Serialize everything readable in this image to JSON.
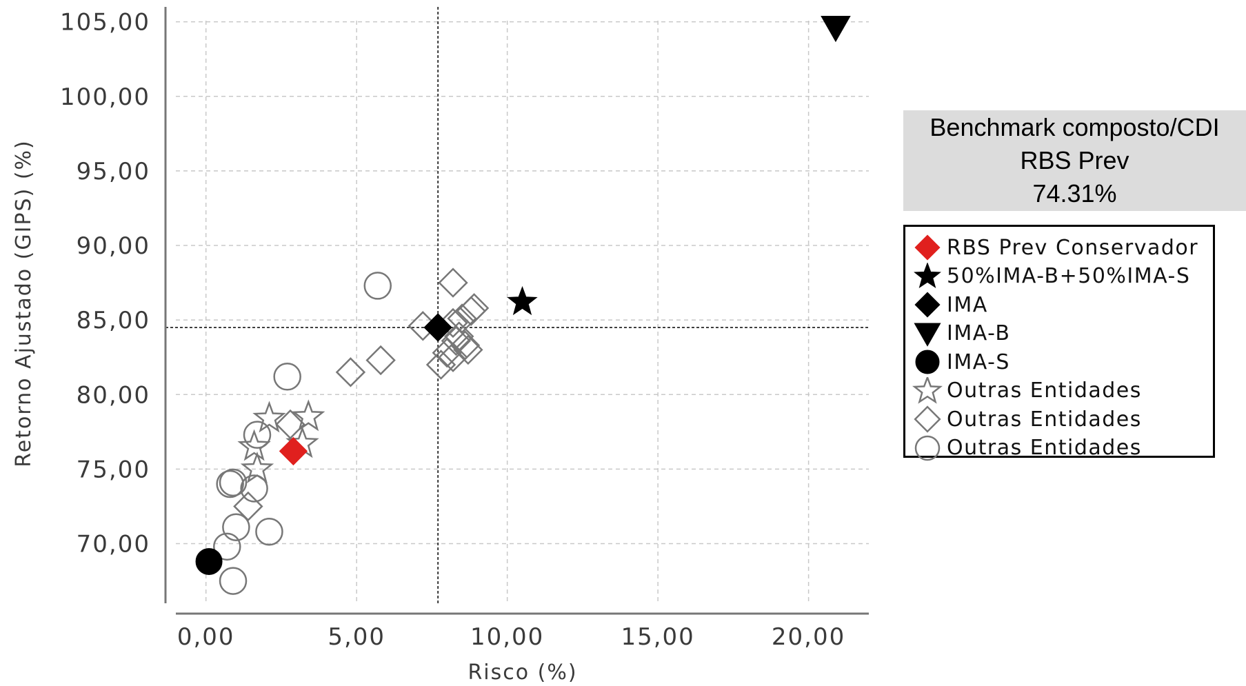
{
  "chart_data": {
    "type": "scatter",
    "xlabel": "Risco (%)",
    "ylabel": "Retorno Ajustado (GIPS) (%)",
    "xlim": [
      -1.0,
      22.0
    ],
    "ylim": [
      66.0,
      106.0
    ],
    "x_ticks": [
      0,
      5,
      10,
      15,
      20
    ],
    "x_tick_labels": [
      "0,00",
      "5,00",
      "10,00",
      "15,00",
      "20,00"
    ],
    "y_ticks": [
      70,
      75,
      80,
      85,
      90,
      95,
      100,
      105
    ],
    "y_tick_labels": [
      "70,00",
      "75,00",
      "80,00",
      "85,00",
      "90,00",
      "95,00",
      "100,00",
      "105,00"
    ],
    "grid": true,
    "reference_lines": {
      "x": 7.7,
      "y": 84.5
    },
    "legend_position": "right",
    "series": [
      {
        "name": "RBS Prev Conservador",
        "marker": "diamond",
        "fill": "#e0201e",
        "stroke": "#e0201e",
        "points": [
          [
            2.9,
            76.2
          ]
        ]
      },
      {
        "name": "50%IMA-B+50%IMA-S",
        "marker": "star",
        "fill": "#000000",
        "stroke": "#000000",
        "points": [
          [
            10.5,
            86.2
          ]
        ]
      },
      {
        "name": "IMA",
        "marker": "diamond",
        "fill": "#000000",
        "stroke": "#000000",
        "points": [
          [
            7.7,
            84.5
          ]
        ]
      },
      {
        "name": "IMA-B",
        "marker": "triangle-down",
        "fill": "#000000",
        "stroke": "#000000",
        "points": [
          [
            20.9,
            104.6
          ]
        ]
      },
      {
        "name": "IMA-S",
        "marker": "circle",
        "fill": "#000000",
        "stroke": "#000000",
        "points": [
          [
            0.1,
            68.8
          ]
        ]
      },
      {
        "name": "Outras Entidades",
        "marker": "star",
        "fill": "none",
        "stroke": "#777777",
        "points": [
          [
            2.1,
            78.4
          ],
          [
            3.4,
            78.5
          ],
          [
            3.2,
            76.7
          ],
          [
            1.6,
            76.5
          ],
          [
            1.7,
            75.0
          ]
        ]
      },
      {
        "name": "Outras Entidades",
        "marker": "diamond",
        "fill": "none",
        "stroke": "#777777",
        "points": [
          [
            8.2,
            87.5
          ],
          [
            7.2,
            84.6
          ],
          [
            5.8,
            82.3
          ],
          [
            4.8,
            81.5
          ],
          [
            2.8,
            78.0
          ],
          [
            1.4,
            72.5
          ],
          [
            8.2,
            84.8
          ],
          [
            8.5,
            85.1
          ],
          [
            8.8,
            85.6
          ],
          [
            8.9,
            85.8
          ],
          [
            8.3,
            83.6
          ],
          [
            8.6,
            83.3
          ],
          [
            8.7,
            83.0
          ],
          [
            8.0,
            82.8
          ],
          [
            7.8,
            82.0
          ],
          [
            8.2,
            82.5
          ],
          [
            8.4,
            83.9
          ]
        ]
      },
      {
        "name": "Outras Entidades",
        "marker": "circle",
        "fill": "none",
        "stroke": "#777777",
        "points": [
          [
            5.7,
            87.3
          ],
          [
            2.7,
            81.2
          ],
          [
            1.7,
            77.3
          ],
          [
            0.8,
            74.0
          ],
          [
            0.9,
            74.1
          ],
          [
            1.6,
            73.7
          ],
          [
            1.0,
            71.1
          ],
          [
            2.1,
            70.8
          ],
          [
            0.7,
            69.8
          ],
          [
            0.9,
            67.5
          ]
        ]
      }
    ]
  },
  "info_box": {
    "line1": "Benchmark composto/CDI",
    "line2": "RBS Prev",
    "line3": "74.31%"
  }
}
